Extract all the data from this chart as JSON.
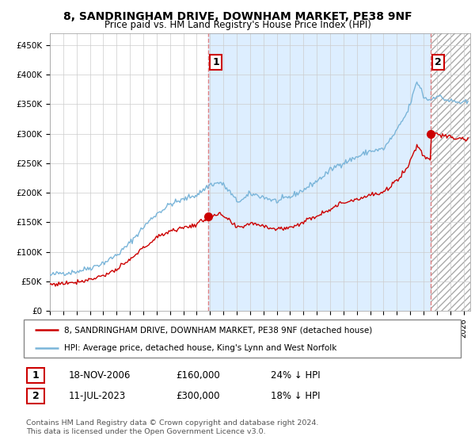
{
  "title": "8, SANDRINGHAM DRIVE, DOWNHAM MARKET, PE38 9NF",
  "subtitle": "Price paid vs. HM Land Registry's House Price Index (HPI)",
  "xlim_start": 1995.0,
  "xlim_end": 2026.5,
  "ylim": [
    0,
    470000
  ],
  "yticks": [
    0,
    50000,
    100000,
    150000,
    200000,
    250000,
    300000,
    350000,
    400000,
    450000
  ],
  "ytick_labels": [
    "£0",
    "£50K",
    "£100K",
    "£150K",
    "£200K",
    "£250K",
    "£300K",
    "£350K",
    "£400K",
    "£450K"
  ],
  "sale1_date_num": 2006.89,
  "sale1_price": 160000,
  "sale1_label": "1",
  "sale2_date_num": 2023.53,
  "sale2_price": 300000,
  "sale2_label": "2",
  "hpi_color": "#7ab5d9",
  "price_color": "#cc0000",
  "annotation_color": "#cc0000",
  "dashed_line_color": "#e08080",
  "shade_color": "#ddeeff",
  "legend_label_price": "8, SANDRINGHAM DRIVE, DOWNHAM MARKET, PE38 9NF (detached house)",
  "legend_label_hpi": "HPI: Average price, detached house, King's Lynn and West Norfolk",
  "table_row1": [
    "1",
    "18-NOV-2006",
    "£160,000",
    "24% ↓ HPI"
  ],
  "table_row2": [
    "2",
    "11-JUL-2023",
    "£300,000",
    "18% ↓ HPI"
  ],
  "footnote": "Contains HM Land Registry data © Crown copyright and database right 2024.\nThis data is licensed under the Open Government Licence v3.0.",
  "background_color": "#ffffff",
  "grid_color": "#cccccc"
}
